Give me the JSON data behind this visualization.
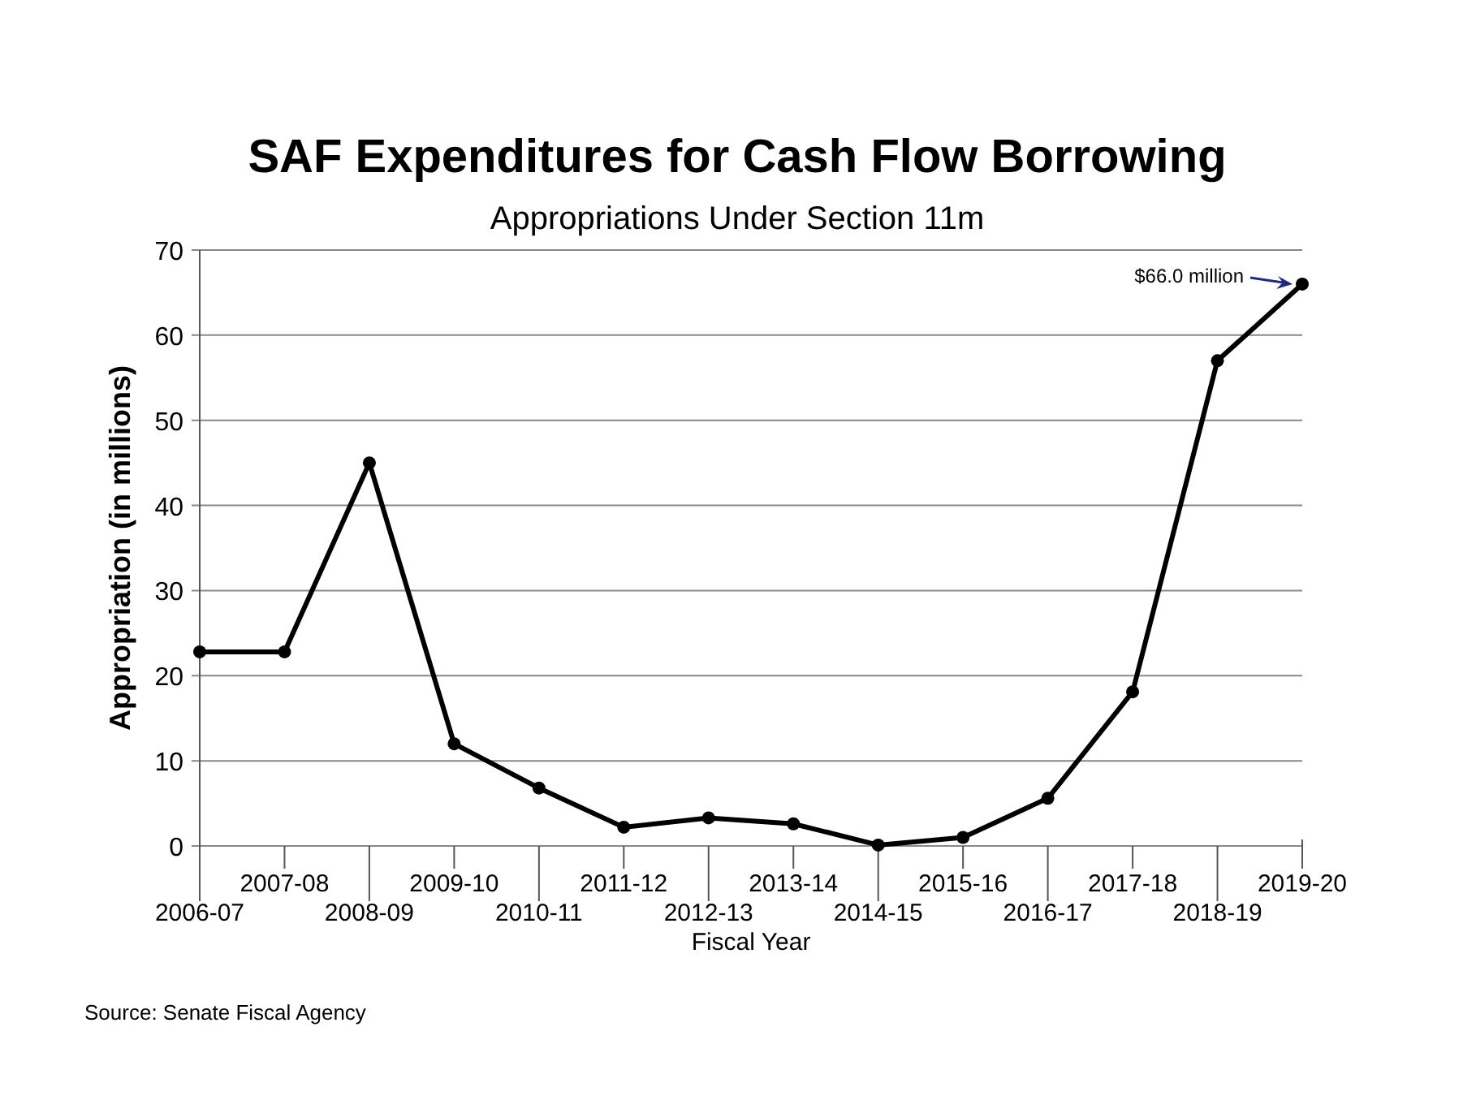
{
  "chart_data": {
    "type": "line",
    "title": "SAF Expenditures for Cash Flow Borrowing",
    "subtitle": "Appropriations Under Section 11m",
    "xlabel": "Fiscal Year",
    "ylabel": "Appropriation (in millions)",
    "categories": [
      "2006-07",
      "2007-08",
      "2008-09",
      "2009-10",
      "2010-11",
      "2011-12",
      "2012-13",
      "2013-14",
      "2014-15",
      "2015-16",
      "2016-17",
      "2017-18",
      "2018-19",
      "2019-20"
    ],
    "series": [
      {
        "color": "#000000",
        "values": [
          22.8,
          22.8,
          45,
          12,
          6.8,
          2.2,
          3.3,
          2.6,
          0.1,
          1.0,
          5.6,
          18.1,
          57.0,
          66.0
        ]
      }
    ],
    "ylim": [
      0,
      70
    ],
    "yticks": [
      0,
      10,
      20,
      30,
      40,
      50,
      60,
      70
    ],
    "grid": "y",
    "marker": "circle",
    "line_style": "solid",
    "annotations": [
      {
        "text": "$66.0 million",
        "x": "2019-20",
        "y": 66
      },
      "Source: Senate Fiscal Agency"
    ]
  }
}
